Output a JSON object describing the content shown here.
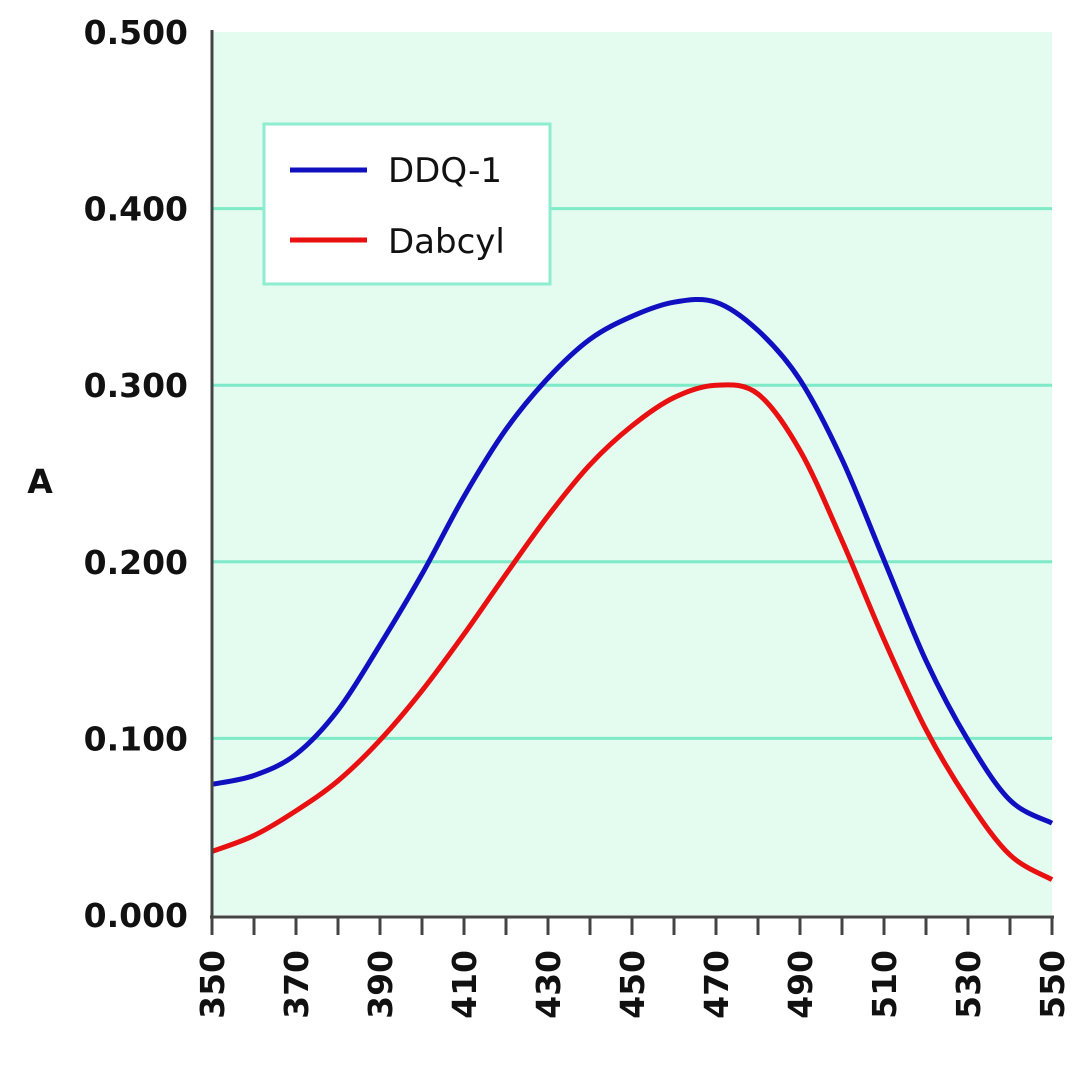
{
  "chart_data": {
    "type": "line",
    "title": "",
    "xlabel": "",
    "ylabel": "A",
    "xlim": [
      350,
      550
    ],
    "ylim": [
      0,
      0.5
    ],
    "grid": true,
    "legend_position": "top-left",
    "x_ticks": [
      "350",
      "370",
      "390",
      "410",
      "430",
      "450",
      "470",
      "490",
      "510",
      "530",
      "550"
    ],
    "y_ticks": [
      "0.000",
      "0.100",
      "0.200",
      "0.300",
      "0.400",
      "0.500"
    ],
    "x": [
      350,
      360,
      370,
      380,
      390,
      400,
      410,
      420,
      430,
      440,
      450,
      460,
      470,
      480,
      490,
      500,
      510,
      520,
      530,
      540,
      550
    ],
    "series": [
      {
        "name": "DDQ-1",
        "color": "#1010c0",
        "values": [
          0.074,
          0.079,
          0.091,
          0.116,
          0.153,
          0.193,
          0.237,
          0.275,
          0.304,
          0.326,
          0.339,
          0.347,
          0.347,
          0.331,
          0.303,
          0.258,
          0.201,
          0.144,
          0.099,
          0.065,
          0.052
        ]
      },
      {
        "name": "Dabcyl",
        "color": "#e81010",
        "values": [
          0.036,
          0.045,
          0.059,
          0.076,
          0.099,
          0.127,
          0.159,
          0.193,
          0.226,
          0.255,
          0.277,
          0.293,
          0.3,
          0.295,
          0.263,
          0.212,
          0.156,
          0.105,
          0.065,
          0.034,
          0.02
        ]
      }
    ],
    "colors": {
      "background": "#e4fbef",
      "grid": "#7eeac8",
      "axis": "#444444"
    }
  }
}
